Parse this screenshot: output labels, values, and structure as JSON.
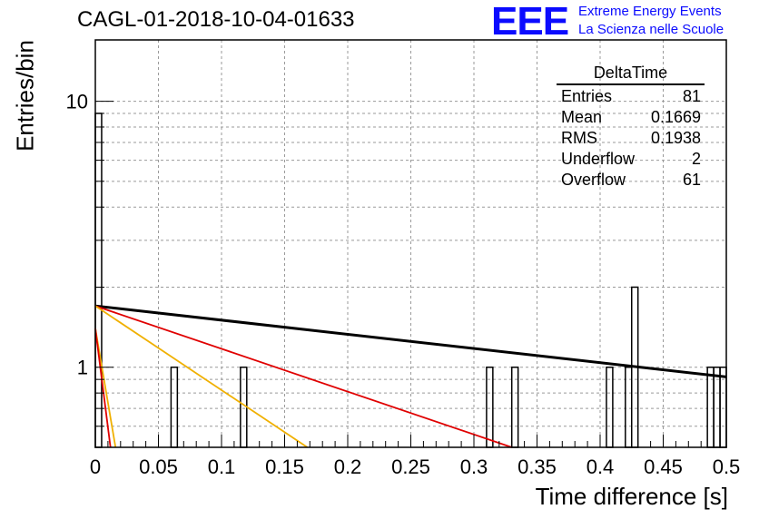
{
  "title": "CAGL-01-2018-10-04-01633",
  "logo": {
    "mark": "EEE",
    "line1": "Extreme Energy Events",
    "line2": "La Scienza nelle Scuole",
    "color": "#0b0bff"
  },
  "stats_box": {
    "name": "DeltaTime",
    "rows": [
      {
        "label": "Entries",
        "value": "81"
      },
      {
        "label": "Mean",
        "value": "0.1669"
      },
      {
        "label": "RMS",
        "value": "0.1938"
      },
      {
        "label": "Underflow",
        "value": "2"
      },
      {
        "label": "Overflow",
        "value": "61"
      }
    ]
  },
  "chart_data": {
    "type": "bar",
    "title": "CAGL-01-2018-10-04-01633",
    "xlabel": "Time difference [s]",
    "ylabel": "Entries/bin",
    "xlim": [
      0,
      0.5
    ],
    "ylim": [
      0.5,
      17
    ],
    "yscale": "log",
    "grid": true,
    "x_ticks": [
      "0",
      "0.05",
      "0.1",
      "0.15",
      "0.2",
      "0.25",
      "0.3",
      "0.35",
      "0.4",
      "0.45",
      "0.5"
    ],
    "y_ticks": [
      "1",
      "10"
    ],
    "bin_width": 0.005,
    "histogram": [
      {
        "x": 0.0,
        "value": 9
      },
      {
        "x": 0.06,
        "value": 1
      },
      {
        "x": 0.115,
        "value": 1
      },
      {
        "x": 0.31,
        "value": 1
      },
      {
        "x": 0.33,
        "value": 1
      },
      {
        "x": 0.405,
        "value": 1
      },
      {
        "x": 0.42,
        "value": 1
      },
      {
        "x": 0.425,
        "value": 2
      },
      {
        "x": 0.485,
        "value": 1
      },
      {
        "x": 0.49,
        "value": 1
      },
      {
        "x": 0.495,
        "value": 1
      }
    ],
    "fit_lines": [
      {
        "color": "#000000",
        "points": [
          [
            0,
            1.7
          ],
          [
            0.5,
            0.92
          ]
        ]
      },
      {
        "color": "#e00000",
        "points": [
          [
            0,
            1.7
          ],
          [
            0.33,
            0.5
          ]
        ]
      },
      {
        "color": "#f0b000",
        "points": [
          [
            0,
            1.7
          ],
          [
            0.168,
            0.5
          ]
        ]
      },
      {
        "color": "#f0b000",
        "points": [
          [
            0,
            1.4
          ],
          [
            0.016,
            0.5
          ]
        ]
      },
      {
        "color": "#e00000",
        "points": [
          [
            0,
            1.4
          ],
          [
            0.012,
            0.5
          ]
        ]
      }
    ]
  }
}
